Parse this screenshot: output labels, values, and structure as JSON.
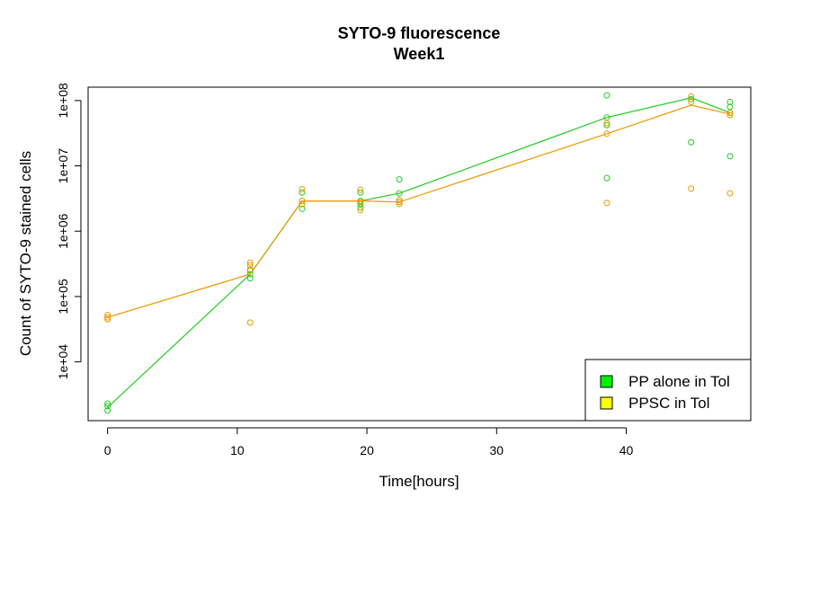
{
  "chart_data": {
    "type": "scatter",
    "title": "SYTO-9 fluorescence",
    "subtitle": "Week1",
    "xlabel": "Time[hours]",
    "ylabel": "Count of SYTO-9 stained cells",
    "x_ticks": [
      0,
      10,
      20,
      30,
      40
    ],
    "xlim": [
      -1.5,
      49.6
    ],
    "y_scale": "log",
    "y_ticks": [
      10000,
      100000,
      1000000,
      10000000,
      100000000
    ],
    "y_tick_labels": [
      "1e+04",
      "1e+05",
      "1e+06",
      "1e+07",
      "1e+08"
    ],
    "ylim": [
      1260,
      160000000
    ],
    "grid": false,
    "legend_position": "bottom-right",
    "series": [
      {
        "name": "PP alone in Tol",
        "color": "#22cc22",
        "legend_fill": "#00ee00",
        "points": [
          [
            0,
            1800
          ],
          [
            0,
            2100
          ],
          [
            0,
            2300
          ],
          [
            11,
            190000
          ],
          [
            11,
            220000
          ],
          [
            11,
            250000
          ],
          [
            15,
            2200000
          ],
          [
            15,
            2600000
          ],
          [
            15,
            2900000
          ],
          [
            15,
            3900000
          ],
          [
            19.5,
            2300000
          ],
          [
            19.5,
            2600000
          ],
          [
            19.5,
            2900000
          ],
          [
            19.5,
            3900000
          ],
          [
            22.5,
            2800000
          ],
          [
            22.5,
            3800000
          ],
          [
            22.5,
            6200000
          ],
          [
            38.5,
            6500000
          ],
          [
            38.5,
            42000000
          ],
          [
            38.5,
            55000000
          ],
          [
            38.5,
            120000000
          ],
          [
            45,
            23000000
          ],
          [
            45,
            105000000
          ],
          [
            48,
            14000000
          ],
          [
            48,
            65000000
          ],
          [
            48,
            80000000
          ],
          [
            48,
            95000000
          ]
        ],
        "line": [
          [
            0,
            2000
          ],
          [
            11,
            220000
          ],
          [
            15,
            2900000
          ],
          [
            19.5,
            2900000
          ],
          [
            22.5,
            3800000
          ],
          [
            38.5,
            55000000
          ],
          [
            45,
            110000000
          ],
          [
            48,
            65000000
          ]
        ]
      },
      {
        "name": "PPSC in Tol",
        "color": "#ee9900",
        "legend_fill": "#ffff00",
        "points": [
          [
            0,
            45000
          ],
          [
            0,
            48000
          ],
          [
            0,
            52000
          ],
          [
            11,
            40000
          ],
          [
            11,
            260000
          ],
          [
            11,
            300000
          ],
          [
            11,
            330000
          ],
          [
            15,
            2600000
          ],
          [
            15,
            2900000
          ],
          [
            15,
            4400000
          ],
          [
            19.5,
            2100000
          ],
          [
            19.5,
            2800000
          ],
          [
            19.5,
            4300000
          ],
          [
            22.5,
            2600000
          ],
          [
            22.5,
            2800000
          ],
          [
            22.5,
            3000000
          ],
          [
            38.5,
            2700000
          ],
          [
            38.5,
            31000000
          ],
          [
            38.5,
            45000000
          ],
          [
            45,
            4500000
          ],
          [
            45,
            95000000
          ],
          [
            45,
            115000000
          ],
          [
            48,
            3800000
          ],
          [
            48,
            60000000
          ],
          [
            48,
            65000000
          ]
        ],
        "line": [
          [
            0,
            48000
          ],
          [
            11,
            220000
          ],
          [
            15,
            2900000
          ],
          [
            19.5,
            2900000
          ],
          [
            22.5,
            2800000
          ],
          [
            38.5,
            31000000
          ],
          [
            45,
            85000000
          ],
          [
            48,
            62000000
          ]
        ]
      }
    ]
  }
}
